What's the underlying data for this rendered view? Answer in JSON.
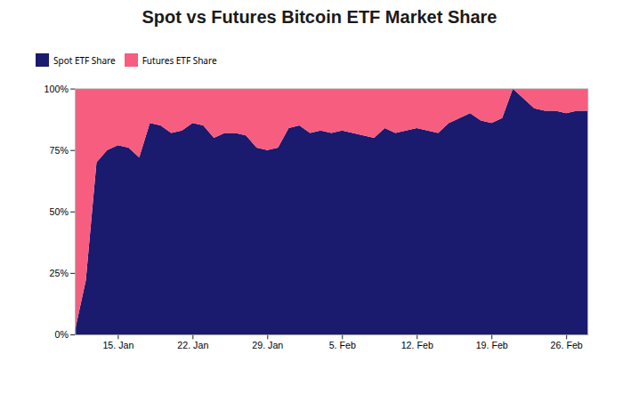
{
  "chart_data": {
    "type": "area",
    "title": "Spot vs Futures Bitcoin ETF Market Share",
    "stacked": true,
    "grid": true,
    "legend": "top",
    "x": [
      0,
      1,
      2,
      3,
      4,
      5,
      6,
      7,
      8,
      9,
      10,
      11,
      12,
      13,
      14,
      15,
      16,
      17,
      18,
      19,
      20,
      21,
      22,
      23,
      24,
      25,
      26,
      27,
      28,
      29,
      30,
      31,
      32,
      33,
      34,
      35,
      36,
      37,
      38,
      39,
      40,
      41,
      42,
      43,
      44,
      45,
      46,
      47,
      48
    ],
    "series": [
      {
        "name": "Spot ETF Share",
        "color": "#1a1a6e",
        "values": [
          2,
          22,
          70,
          75,
          77,
          76,
          72,
          86,
          85,
          82,
          83,
          86,
          85,
          80,
          82,
          82,
          81,
          76,
          75,
          76,
          84,
          85,
          82,
          83,
          82,
          83,
          82,
          81,
          80,
          84,
          82,
          83,
          84,
          83,
          82,
          86,
          88,
          90,
          87,
          86,
          88,
          100,
          96,
          92,
          91,
          91,
          90,
          91,
          91
        ]
      },
      {
        "name": "Futures ETF Share",
        "color": "#f75d7e",
        "values": [
          98,
          78,
          30,
          25,
          23,
          24,
          28,
          14,
          15,
          18,
          17,
          14,
          15,
          20,
          18,
          18,
          19,
          24,
          25,
          24,
          16,
          15,
          18,
          17,
          18,
          17,
          18,
          19,
          20,
          16,
          18,
          17,
          16,
          17,
          18,
          14,
          12,
          10,
          13,
          14,
          12,
          0,
          4,
          8,
          9,
          9,
          10,
          9,
          9
        ]
      }
    ],
    "xlim": [
      0,
      48
    ],
    "xticks": [
      {
        "value": 4,
        "label": "15. Jan"
      },
      {
        "value": 11,
        "label": "22. Jan"
      },
      {
        "value": 18,
        "label": "29. Jan"
      },
      {
        "value": 25,
        "label": "5. Feb"
      },
      {
        "value": 32,
        "label": "12. Feb"
      },
      {
        "value": 39,
        "label": "19. Feb"
      },
      {
        "value": 46,
        "label": "26. Feb"
      }
    ],
    "ylim": [
      0,
      100
    ],
    "yticks": [
      {
        "value": 0,
        "label": "0%"
      },
      {
        "value": 25,
        "label": "25%"
      },
      {
        "value": 50,
        "label": "50%"
      },
      {
        "value": 75,
        "label": "75%"
      },
      {
        "value": 100,
        "label": "100%"
      }
    ]
  }
}
